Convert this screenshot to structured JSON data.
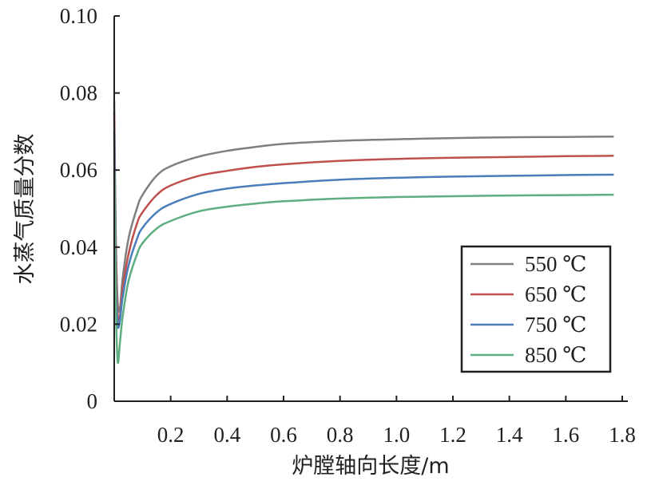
{
  "chart_data": {
    "type": "line",
    "title": "",
    "xlabel": "炉膛轴向长度/m",
    "ylabel": "水蒸气质量分数",
    "xlim": [
      0,
      1.8
    ],
    "ylim": [
      0,
      0.1
    ],
    "x_ticks": [
      "0.2",
      "0.4",
      "0.6",
      "0.8",
      "1.0",
      "1.2",
      "1.4",
      "1.6",
      "1.8"
    ],
    "x_tick_values": [
      0.2,
      0.4,
      0.6,
      0.8,
      1.0,
      1.2,
      1.4,
      1.6,
      1.8
    ],
    "y_ticks": [
      "0",
      "0.02",
      "0.04",
      "0.06",
      "0.08",
      "0.10"
    ],
    "y_tick_values": [
      0,
      0.02,
      0.04,
      0.06,
      0.08,
      0.1
    ],
    "grid": false,
    "legend_position": "bottom-right",
    "series": [
      {
        "name": "550 ℃",
        "color": "#7f7f7f",
        "x": [
          0.0,
          0.005,
          0.012,
          0.02,
          0.03,
          0.05,
          0.08,
          0.1,
          0.15,
          0.2,
          0.3,
          0.4,
          0.5,
          0.6,
          0.8,
          1.0,
          1.2,
          1.4,
          1.6,
          1.77
        ],
        "y": [
          0.078,
          0.045,
          0.026,
          0.024,
          0.032,
          0.042,
          0.05,
          0.0535,
          0.0585,
          0.061,
          0.0635,
          0.065,
          0.066,
          0.0668,
          0.0676,
          0.068,
          0.0683,
          0.0685,
          0.0686,
          0.0687
        ]
      },
      {
        "name": "650 ℃",
        "color": "#c0504d",
        "x": [
          0.0,
          0.005,
          0.012,
          0.02,
          0.03,
          0.05,
          0.08,
          0.1,
          0.15,
          0.2,
          0.3,
          0.4,
          0.5,
          0.6,
          0.8,
          1.0,
          1.2,
          1.4,
          1.6,
          1.77
        ],
        "y": [
          0.075,
          0.04,
          0.023,
          0.022,
          0.029,
          0.038,
          0.046,
          0.049,
          0.0535,
          0.056,
          0.0585,
          0.0598,
          0.0608,
          0.0615,
          0.0624,
          0.0629,
          0.0632,
          0.0634,
          0.0636,
          0.0637
        ]
      },
      {
        "name": "750 ℃",
        "color": "#4a7ebb",
        "x": [
          0.0,
          0.005,
          0.012,
          0.02,
          0.03,
          0.05,
          0.08,
          0.1,
          0.15,
          0.2,
          0.3,
          0.4,
          0.5,
          0.6,
          0.8,
          1.0,
          1.2,
          1.4,
          1.6,
          1.77
        ],
        "y": [
          0.07,
          0.034,
          0.02,
          0.021,
          0.027,
          0.035,
          0.042,
          0.045,
          0.049,
          0.0512,
          0.0538,
          0.0552,
          0.056,
          0.0566,
          0.0575,
          0.058,
          0.0583,
          0.0585,
          0.0587,
          0.0588
        ]
      },
      {
        "name": "850 ℃",
        "color": "#5fae80",
        "x": [
          0.0,
          0.005,
          0.012,
          0.02,
          0.03,
          0.05,
          0.08,
          0.1,
          0.15,
          0.2,
          0.3,
          0.4,
          0.5,
          0.6,
          0.8,
          1.0,
          1.2,
          1.4,
          1.6,
          1.77
        ],
        "y": [
          0.06,
          0.028,
          0.0105,
          0.015,
          0.022,
          0.031,
          0.038,
          0.041,
          0.0448,
          0.0468,
          0.0493,
          0.0505,
          0.0513,
          0.0519,
          0.0526,
          0.053,
          0.0532,
          0.0534,
          0.0535,
          0.0536
        ]
      }
    ]
  }
}
